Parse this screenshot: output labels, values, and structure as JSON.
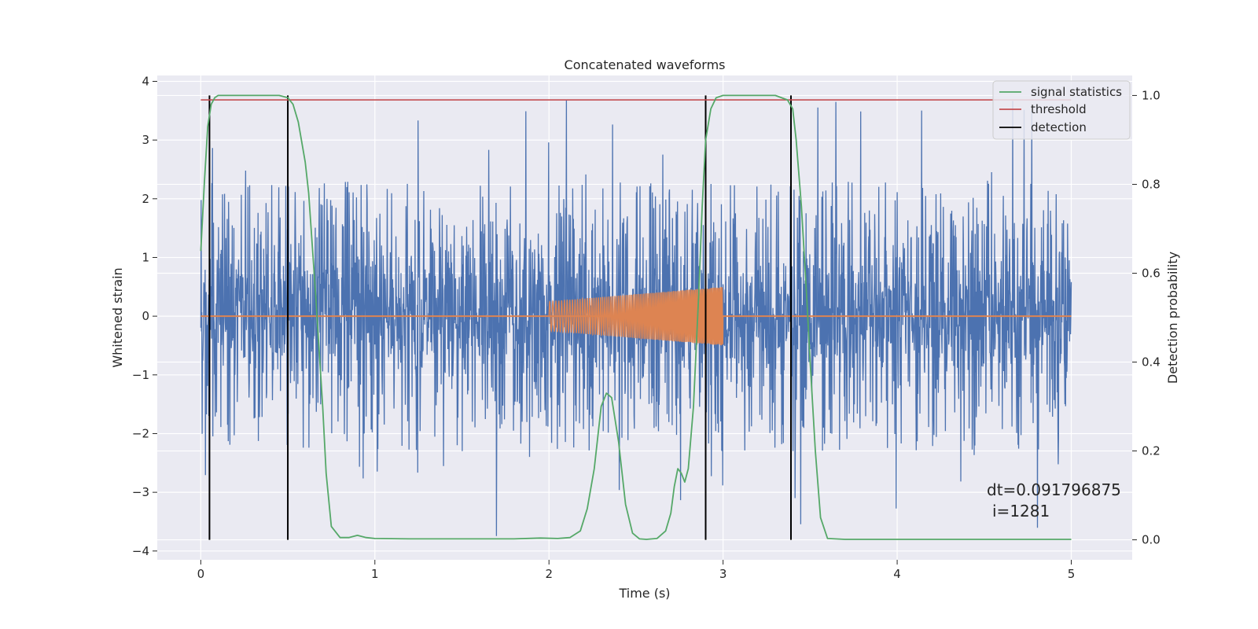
{
  "chart_data": {
    "type": "line",
    "title": "Concatenated waveforms",
    "xlabel": "Time (s)",
    "ylabel_left": "Whitened strain",
    "ylabel_right": "Detection probability",
    "xlim": [
      -0.25,
      5.35
    ],
    "ylim_left": [
      -4.15,
      4.1
    ],
    "ylim_right": [
      -0.045,
      1.045
    ],
    "x_ticks": [
      0,
      1,
      2,
      3,
      4,
      5
    ],
    "x_tick_labels": [
      "0",
      "1",
      "2",
      "3",
      "4",
      "5"
    ],
    "y_ticks_left": [
      -4,
      -3,
      -2,
      -1,
      0,
      1,
      2,
      3,
      4
    ],
    "y_tick_labels_left": [
      "−4",
      "−3",
      "−2",
      "−1",
      "0",
      "1",
      "2",
      "3",
      "4"
    ],
    "y_ticks_right": [
      0.0,
      0.2,
      0.4,
      0.6,
      0.8,
      1.0
    ],
    "y_tick_labels_right": [
      "0.0",
      "0.2",
      "0.4",
      "0.6",
      "0.8",
      "1.0"
    ],
    "grid": true,
    "legend_position": "top-right",
    "series": [
      {
        "kind": "noise",
        "color": "#4c72b0",
        "x_range": [
          0,
          5
        ],
        "core_amplitude": 0.75,
        "typical_peak": 2.3,
        "max_peak": 3.75,
        "min_trough": -3.8
      },
      {
        "kind": "injected-chirp",
        "color": "#dd8452",
        "baseline_x_range": [
          0,
          5
        ],
        "chirp_x_range": [
          2.0,
          3.0
        ],
        "amplitude_start": 0.25,
        "amplitude_end": 0.5
      },
      {
        "name": "signal statistics",
        "axis": "right",
        "color": "#55a868",
        "x": [
          0,
          0.02,
          0.04,
          0.06,
          0.08,
          0.1,
          0.15,
          0.3,
          0.45,
          0.5,
          0.53,
          0.56,
          0.6,
          0.62,
          0.66,
          0.7,
          0.72,
          0.75,
          0.8,
          0.85,
          0.9,
          0.95,
          1.0,
          1.2,
          1.5,
          1.8,
          1.95,
          2.05,
          2.12,
          2.18,
          2.22,
          2.26,
          2.3,
          2.33,
          2.36,
          2.4,
          2.44,
          2.48,
          2.52,
          2.56,
          2.62,
          2.67,
          2.7,
          2.72,
          2.74,
          2.76,
          2.78,
          2.8,
          2.83,
          2.86,
          2.88,
          2.9,
          2.93,
          2.96,
          3.0,
          3.1,
          3.3,
          3.37,
          3.4,
          3.42,
          3.45,
          3.48,
          3.5,
          3.53,
          3.56,
          3.6,
          3.7,
          4.0,
          4.5,
          5.0
        ],
        "y": [
          0.65,
          0.8,
          0.93,
          0.98,
          0.995,
          1.0,
          1.0,
          1.0,
          1.0,
          0.995,
          0.98,
          0.94,
          0.85,
          0.78,
          0.55,
          0.3,
          0.15,
          0.03,
          0.005,
          0.005,
          0.01,
          0.005,
          0.003,
          0.002,
          0.002,
          0.002,
          0.004,
          0.003,
          0.005,
          0.02,
          0.07,
          0.16,
          0.3,
          0.33,
          0.32,
          0.22,
          0.08,
          0.015,
          0.002,
          0.001,
          0.003,
          0.02,
          0.06,
          0.12,
          0.16,
          0.15,
          0.13,
          0.16,
          0.3,
          0.55,
          0.75,
          0.9,
          0.97,
          0.995,
          1.0,
          1.0,
          1.0,
          0.99,
          0.97,
          0.9,
          0.75,
          0.55,
          0.4,
          0.2,
          0.05,
          0.003,
          0.001,
          0.001,
          0.001,
          0.001
        ]
      },
      {
        "name": "threshold",
        "axis": "right",
        "color": "#c44e52",
        "x": [
          0,
          5
        ],
        "y": [
          0.99,
          0.99
        ]
      },
      {
        "name": "detection",
        "axis": "right",
        "color": "#000000",
        "kind": "vlines",
        "x": [
          0.05,
          0.5,
          2.9,
          3.39
        ],
        "ymin": 0.0,
        "ymax": 1.0
      }
    ],
    "annotation": {
      "line1": "dt=0.091796875",
      "line2": "i=1281"
    }
  }
}
